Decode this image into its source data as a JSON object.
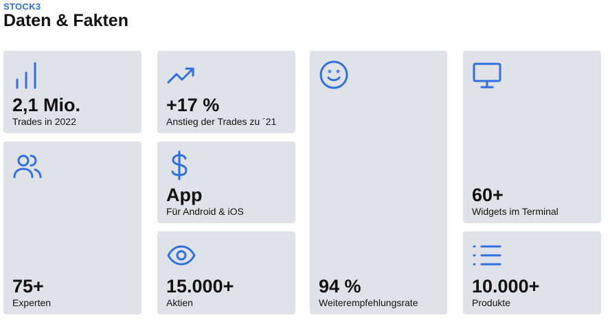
{
  "header": {
    "eyebrow": "STOCK3",
    "title": "Daten & Fakten"
  },
  "cards": [
    {
      "value": "2,1 Mio.",
      "label": "Trades in 2022"
    },
    {
      "value": "75+",
      "label": "Experten"
    },
    {
      "value": "+17 %",
      "label": "Anstieg der Trades zu ´21"
    },
    {
      "value": "App",
      "label": "Für Android & iOS"
    },
    {
      "value": "15.000+",
      "label": "Aktien"
    },
    {
      "value": "94 %",
      "label": "Weiterempfehlungsrate"
    },
    {
      "value": "60+",
      "label": "Widgets im Terminal"
    },
    {
      "value": "10.000+",
      "label": "Produkte"
    }
  ]
}
